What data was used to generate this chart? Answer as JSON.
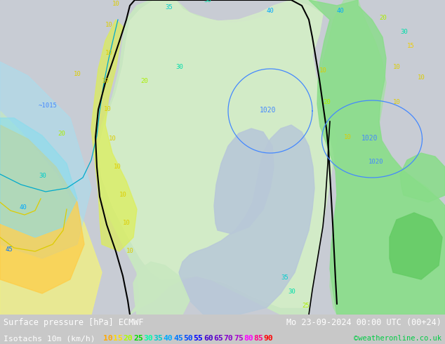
{
  "title_left": "Surface pressure [hPa] ECMWF",
  "title_right": "Mo 23-09-2024 00:00 UTC (00+24)",
  "legend_label": "Isotachs 10m (km/h)",
  "copyright": "©weatheronline.co.uk",
  "figsize": [
    6.34,
    4.9
  ],
  "dpi": 100,
  "isotach_values": [
    10,
    15,
    20,
    25,
    30,
    35,
    40,
    45,
    50,
    55,
    60,
    65,
    70,
    75,
    80,
    85,
    90
  ],
  "isotach_colors": [
    "#ffaa00",
    "#ffdd00",
    "#aaff00",
    "#00dd00",
    "#00ffaa",
    "#00cccc",
    "#00aaff",
    "#0077ff",
    "#0044ff",
    "#0000ff",
    "#4400cc",
    "#6600cc",
    "#8800cc",
    "#aa00cc",
    "#ff00ff",
    "#ff0088",
    "#ff0000"
  ],
  "bottom_bar_color": "#000000",
  "text_color_white": "#ffffff",
  "text_color_green": "#00cc44",
  "font_size_title": 8.5,
  "font_size_legend": 8.2,
  "map_bg": "#c8c8c8",
  "land_color": "#d8f0d8",
  "sea_color": "#c8c8d8",
  "norway_green": "#b8e8b8",
  "contour_black": "#000000",
  "contour_blue": "#4488ff",
  "contour_cyan": "#00ccdd",
  "contour_green": "#00aa44",
  "contour_yellow": "#ddcc00",
  "contour_magenta": "#cc00cc"
}
